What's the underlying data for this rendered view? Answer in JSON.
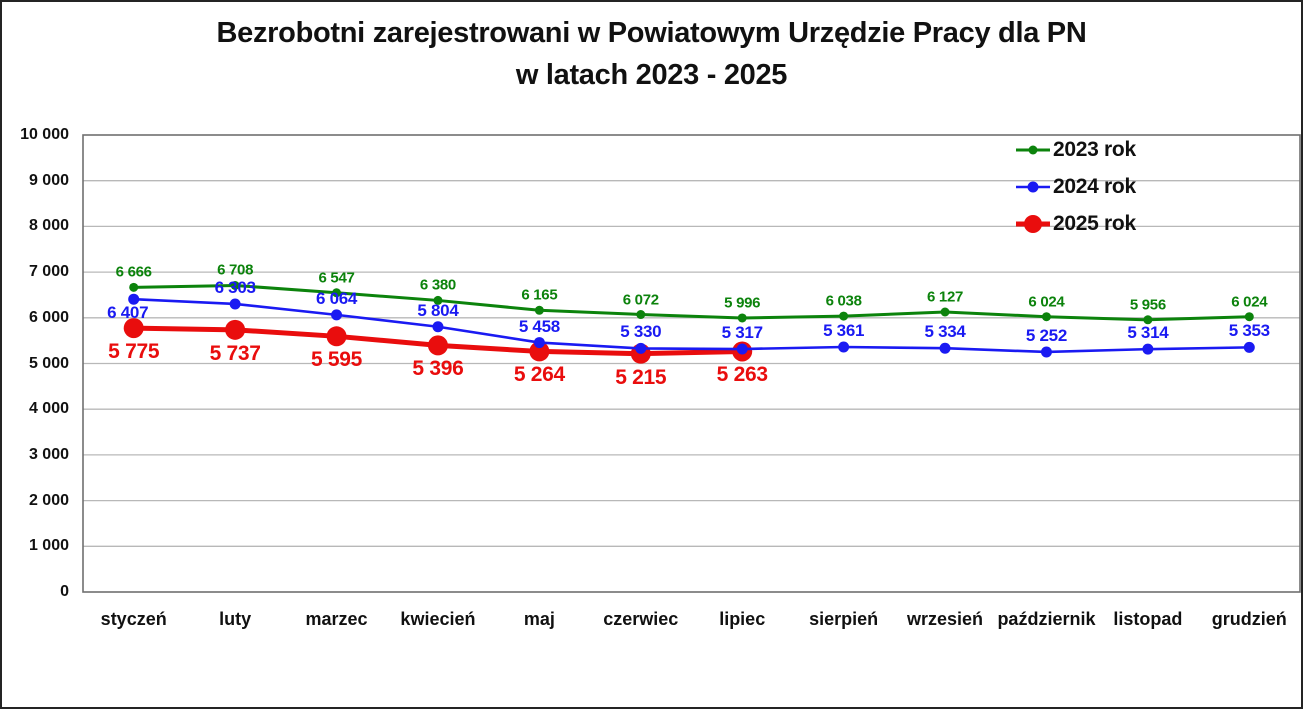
{
  "title": {
    "line1": "Bezrobotni zarejestrowani w Powiatowym Urzędzie Pracy dla PN",
    "line2": "w latach 2023 - 2025"
  },
  "colors": {
    "series_2023": "#0c830c",
    "series_2024": "#1a1af2",
    "series_2025": "#e90d0d",
    "gridline": "#b8b8b8",
    "plot_border": "#6f6f6f",
    "text": "#111111"
  },
  "chart_data": {
    "type": "line",
    "title": "Bezrobotni zarejestrowani w Powiatowym Urzędzie Pracy dla PN w latach 2023 - 2025",
    "xlabel": "",
    "ylabel": "",
    "categories": [
      "styczeń",
      "luty",
      "marzec",
      "kwiecień",
      "maj",
      "czerwiec",
      "lipiec",
      "sierpień",
      "wrzesień",
      "październik",
      "listopad",
      "grudzień"
    ],
    "series": [
      {
        "name": "2023 rok",
        "color": "#0c830c",
        "values": [
          6666,
          6708,
          6547,
          6380,
          6165,
          6072,
          5996,
          6038,
          6127,
          6024,
          5956,
          6024
        ]
      },
      {
        "name": "2024 rok",
        "color": "#1a1af2",
        "values": [
          6407,
          6303,
          6064,
          5804,
          5458,
          5330,
          5317,
          5361,
          5334,
          5252,
          5314,
          5353
        ]
      },
      {
        "name": "2025 rok",
        "color": "#e90d0d",
        "values": [
          5775,
          5737,
          5595,
          5396,
          5264,
          5215,
          5263
        ]
      }
    ],
    "ylim": [
      0,
      10000
    ],
    "ytick_step": 1000,
    "ytick_labels": [
      "0",
      "1 000",
      "2 000",
      "3 000",
      "4 000",
      "5 000",
      "6 000",
      "7 000",
      "8 000",
      "9 000",
      "10 000"
    ],
    "grid": true,
    "data_labels": true,
    "legend_position": "top-right"
  }
}
